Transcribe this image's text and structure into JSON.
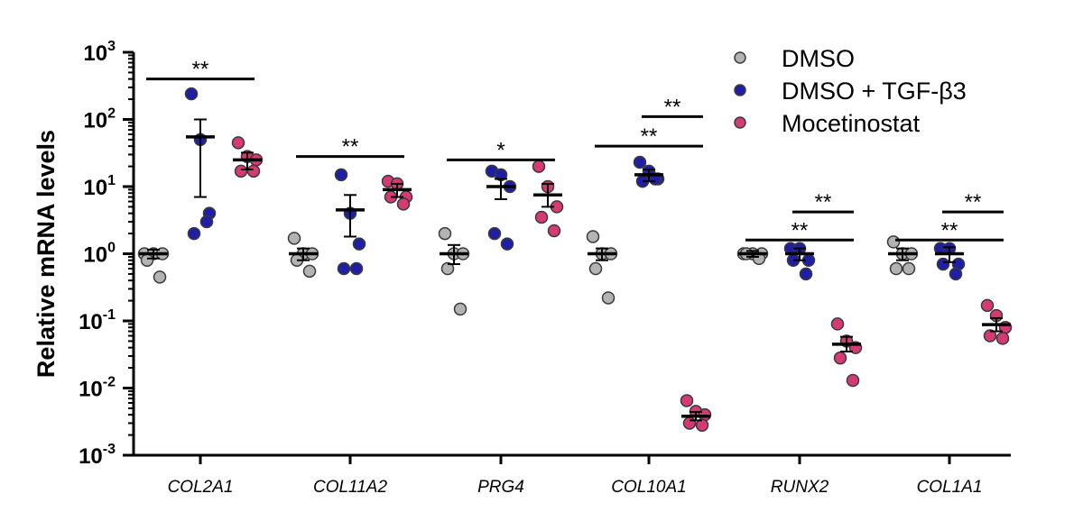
{
  "chart_data": {
    "type": "scatter",
    "title": "",
    "ylabel": "Relative mRNA levels",
    "yscale": "log",
    "ylim": [
      0.001,
      1000
    ],
    "yticks": [
      {
        "value": 1000,
        "base": "10",
        "exp": "3"
      },
      {
        "value": 100,
        "base": "10",
        "exp": "2"
      },
      {
        "value": 10,
        "base": "10",
        "exp": "1"
      },
      {
        "value": 1,
        "base": "10",
        "exp": "0"
      },
      {
        "value": 0.1,
        "base": "10",
        "exp": "-1"
      },
      {
        "value": 0.01,
        "base": "10",
        "exp": "-2"
      },
      {
        "value": 0.001,
        "base": "10",
        "exp": "-3"
      }
    ],
    "categories": [
      "COL2A1",
      "COL11A2",
      "PRG4",
      "COL10A1",
      "RUNX2",
      "COL1A1"
    ],
    "legend_position": "top-right",
    "series": [
      {
        "name": "DMSO",
        "color": "#b3b3b3",
        "points": [
          [
            1.0,
            1.0,
            1.0,
            0.8,
            0.45
          ],
          [
            1.7,
            1.0,
            1.0,
            0.8,
            0.55
          ],
          [
            2.0,
            1.0,
            1.0,
            0.6,
            0.15
          ],
          [
            1.8,
            1.0,
            1.0,
            0.6,
            0.22
          ],
          [
            1.0,
            1.0,
            1.0,
            1.0,
            0.85
          ],
          [
            1.5,
            1.0,
            1.0,
            0.6,
            0.6
          ]
        ],
        "mean": [
          1.0,
          1.0,
          1.0,
          1.0,
          1.0,
          1.0
        ],
        "sem_low": [
          0.85,
          0.8,
          0.7,
          0.8,
          0.9,
          0.8
        ],
        "sem_high": [
          1.15,
          1.2,
          1.35,
          1.2,
          1.1,
          1.2
        ]
      },
      {
        "name": "DMSO + TGF-β3",
        "color": "#1f1fa6",
        "points": [
          [
            240,
            50,
            4,
            2,
            3
          ],
          [
            15,
            4,
            1.4,
            0.6,
            0.6
          ],
          [
            17,
            15,
            10,
            2,
            1.4
          ],
          [
            23,
            17,
            13,
            12,
            13
          ],
          [
            1.2,
            1.2,
            0.8,
            0.8,
            0.5
          ],
          [
            1.2,
            1.2,
            0.7,
            0.7,
            0.5
          ]
        ],
        "mean": [
          55,
          4.5,
          10,
          15,
          1.0,
          1.0
        ],
        "sem_low": [
          7,
          1.8,
          6.5,
          12,
          0.8,
          0.75
        ],
        "sem_high": [
          100,
          7.5,
          13,
          18,
          1.2,
          1.25
        ]
      },
      {
        "name": "Mocetinostat",
        "color": "#d63a74",
        "points": [
          [
            45,
            28,
            25,
            17,
            17
          ],
          [
            12,
            11,
            7,
            7,
            5.5
          ],
          [
            20,
            10,
            5,
            3.5,
            2.2
          ],
          [
            0.0065,
            0.0045,
            0.004,
            0.003,
            0.0028
          ],
          [
            0.09,
            0.05,
            0.04,
            0.028,
            0.013
          ],
          [
            0.17,
            0.12,
            0.08,
            0.06,
            0.055
          ]
        ],
        "mean": [
          25,
          9,
          7.5,
          0.0038,
          0.045,
          0.088
        ],
        "sem_low": [
          18,
          7,
          5,
          0.0033,
          0.035,
          0.07
        ],
        "sem_high": [
          32,
          11,
          11,
          0.0044,
          0.058,
          0.11
        ]
      }
    ],
    "significance": [
      {
        "category": 0,
        "from": 0,
        "to": 2,
        "y": 400,
        "label": "**"
      },
      {
        "category": 1,
        "from": 0,
        "to": 2,
        "y": 28,
        "label": "**"
      },
      {
        "category": 2,
        "from": 0,
        "to": 2,
        "y": 25,
        "label": "*"
      },
      {
        "category": 3,
        "from": 0,
        "to": 2,
        "y": 40,
        "label": "**"
      },
      {
        "category": 3,
        "from": 1,
        "to": 2,
        "y": 110,
        "label": "**"
      },
      {
        "category": 4,
        "from": 0,
        "to": 2,
        "y": 1.6,
        "label": "**"
      },
      {
        "category": 4,
        "from": 1,
        "to": 2,
        "y": 4.2,
        "label": "**"
      },
      {
        "category": 5,
        "from": 0,
        "to": 2,
        "y": 1.6,
        "label": "**"
      },
      {
        "category": 5,
        "from": 1,
        "to": 2,
        "y": 4.2,
        "label": "**"
      }
    ]
  }
}
